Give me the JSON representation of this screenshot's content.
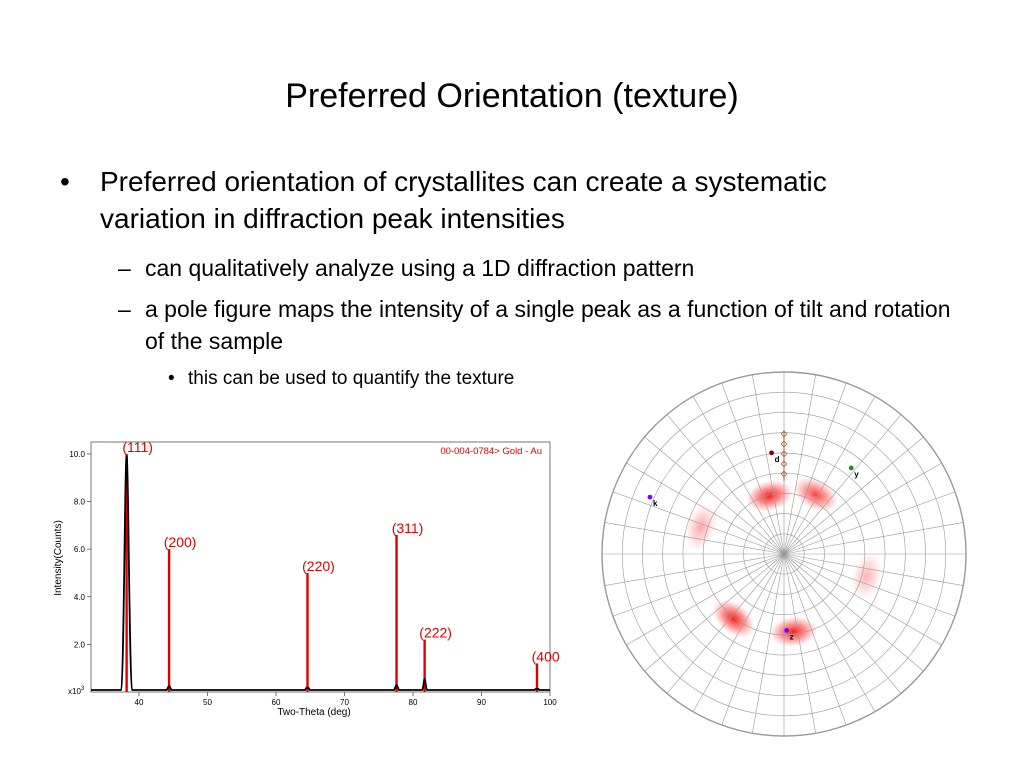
{
  "slide": {
    "title": "Preferred Orientation (texture)",
    "bullets": [
      {
        "marker": "•",
        "text": "Preferred orientation of crystallites can create a systematic variation in diffraction peak intensities"
      },
      {
        "marker": "–",
        "text": "can qualitatively analyze using a 1D diffraction pattern"
      },
      {
        "marker": "–",
        "text": "a pole figure maps the intensity of a single peak as a function of tilt and rotation of the sample"
      },
      {
        "marker": "•",
        "text": "this can be used to quantify the texture"
      }
    ]
  },
  "chart_data": {
    "type": "line",
    "title": "",
    "reference_label": "00-004-0784> Gold - Au",
    "xlabel": "Two-Theta (deg)",
    "ylabel": "Intensity(Counts)",
    "multiplier_label": "x10",
    "multiplier_exponent": "3",
    "xlim": [
      33,
      100
    ],
    "ylim": [
      0,
      10.5
    ],
    "xticks": [
      40,
      50,
      60,
      70,
      80,
      90,
      100
    ],
    "yticks": [
      2.0,
      4.0,
      6.0,
      8.0,
      10.0
    ],
    "xtick_labels": [
      "40",
      "50",
      "60",
      "70",
      "80",
      "90",
      "100"
    ],
    "ytick_labels": [
      "2.0",
      "4.0",
      "6.0",
      "8.0",
      "10.0"
    ],
    "grid": false,
    "measured_peaks": [
      {
        "x": 38.2,
        "y": 9.9
      },
      {
        "x": 44.4,
        "y": 0.25
      },
      {
        "x": 64.6,
        "y": 0.2
      },
      {
        "x": 77.6,
        "y": 0.3
      },
      {
        "x": 81.7,
        "y": 0.55
      },
      {
        "x": 98.1,
        "y": 0.12
      }
    ],
    "reference_peaks": [
      {
        "label": "(111)",
        "x": 38.2,
        "y": 10.0
      },
      {
        "label": "(200)",
        "x": 44.4,
        "y": 6.0
      },
      {
        "label": "(220)",
        "x": 64.6,
        "y": 5.0
      },
      {
        "label": "(311)",
        "x": 77.6,
        "y": 6.6
      },
      {
        "label": "(222)",
        "x": 81.7,
        "y": 2.2
      },
      {
        "label": "(400)",
        "x": 98.1,
        "y": 1.2
      }
    ],
    "colors": {
      "measured": "#000000",
      "reference": "#e00000"
    }
  },
  "pole_figure": {
    "markers": [
      {
        "label": "d",
        "r": 0.56,
        "angle": 97,
        "color": "#8b0000"
      },
      {
        "label": "y",
        "r": 0.6,
        "angle": 52,
        "color": "#228b22"
      },
      {
        "label": "k",
        "r": 0.8,
        "angle": 157,
        "color": "#8000ff"
      },
      {
        "label": "z",
        "r": 0.42,
        "angle": 272,
        "color": "#8000ff"
      }
    ],
    "hotspots": [
      {
        "r": 0.33,
        "angle": 104,
        "intensity": 0.9
      },
      {
        "r": 0.37,
        "angle": 62,
        "intensity": 0.75
      },
      {
        "r": 0.48,
        "angle": 162,
        "intensity": 0.35
      },
      {
        "r": 0.47,
        "angle": 345,
        "intensity": 0.3
      },
      {
        "r": 0.45,
        "angle": 232,
        "intensity": 0.9
      },
      {
        "r": 0.43,
        "angle": 277,
        "intensity": 0.9
      }
    ],
    "colors": {
      "hotspot": "#ff0000",
      "grid": "#999999"
    }
  }
}
